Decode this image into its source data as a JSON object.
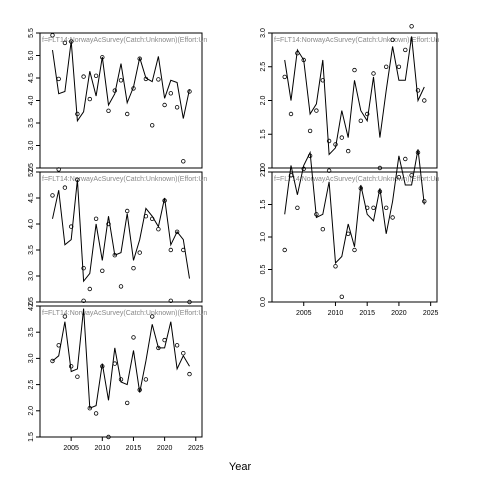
{
  "figure": {
    "xlabel": "Year",
    "x_ticks": [
      "2005",
      "2010",
      "2015",
      "2020",
      "2025"
    ]
  },
  "chart_data": [
    {
      "type": "line",
      "panel_label": "f=FLT14:NorwayAcSurvey(Catch:Unknown)(Effort:Un",
      "xlim": [
        2000,
        2026
      ],
      "ylim": [
        2.5,
        5.5
      ],
      "y_ticks": [
        "2.5",
        "3.0",
        "3.5",
        "4.0",
        "4.5",
        "5.0",
        "5.5"
      ],
      "x": [
        2002,
        2003,
        2004,
        2005,
        2006,
        2007,
        2008,
        2009,
        2010,
        2011,
        2012,
        2013,
        2014,
        2015,
        2016,
        2017,
        2018,
        2019,
        2020,
        2021,
        2022,
        2023,
        2024
      ],
      "series": [
        {
          "values": [
            5.12,
            4.15,
            4.2,
            5.32,
            3.55,
            3.75,
            4.65,
            4.1,
            4.97,
            3.9,
            4.15,
            4.82,
            3.95,
            4.3,
            4.95,
            4.5,
            4.42,
            4.98,
            4.05,
            4.45,
            4.4,
            3.6,
            4.25
          ]
        },
        {
          "values": [
            5.45,
            4.48,
            5.28,
            5.31,
            3.7,
            4.53,
            4.03,
            4.55,
            4.96,
            3.77,
            4.22,
            4.45,
            3.7,
            4.27,
            4.93,
            4.48,
            3.45,
            4.47,
            3.9,
            4.16,
            3.85,
            2.65,
            4.2
          ]
        }
      ]
    },
    {
      "type": "line",
      "panel_label": "f=FLT14:NorwayAcSurvey(Catch:Unknown)(Effort:Un",
      "xlim": [
        2000,
        2026
      ],
      "ylim": [
        1.0,
        3.0
      ],
      "y_ticks": [
        "1.0",
        "1.5",
        "2.0",
        "2.5",
        "3.0"
      ],
      "x": [
        2002,
        2003,
        2004,
        2005,
        2006,
        2007,
        2008,
        2009,
        2010,
        2011,
        2012,
        2013,
        2014,
        2015,
        2016,
        2017,
        2018,
        2019,
        2020,
        2021,
        2022,
        2023,
        2024
      ],
      "series": [
        {
          "values": [
            2.6,
            2.0,
            2.75,
            2.6,
            1.8,
            1.95,
            2.6,
            1.2,
            1.3,
            1.85,
            1.45,
            2.3,
            1.85,
            1.7,
            2.35,
            1.45,
            2.15,
            2.8,
            2.3,
            2.3,
            2.95,
            2.0,
            2.2
          ]
        },
        {
          "values": [
            2.35,
            1.8,
            2.7,
            2.6,
            1.55,
            1.85,
            2.3,
            1.4,
            1.35,
            1.45,
            1.25,
            2.45,
            1.7,
            1.8,
            2.4,
            1.0,
            2.5,
            2.9,
            2.5,
            2.75,
            3.1,
            2.15,
            2.0
          ]
        }
      ]
    },
    {
      "type": "line",
      "panel_label": "f=FLT14:NorwayAcSurvey(Catch:Unknown)(Effort:Un",
      "xlim": [
        2000,
        2026
      ],
      "ylim": [
        2.5,
        5.0
      ],
      "y_ticks": [
        "2.5",
        "3.0",
        "3.5",
        "4.0",
        "4.5",
        "5.0"
      ],
      "x": [
        2002,
        2003,
        2004,
        2005,
        2006,
        2007,
        2008,
        2009,
        2010,
        2011,
        2012,
        2013,
        2014,
        2015,
        2016,
        2017,
        2018,
        2019,
        2020,
        2021,
        2022,
        2023,
        2024
      ],
      "series": [
        {
          "values": [
            4.1,
            4.65,
            3.6,
            3.7,
            4.85,
            2.9,
            3.05,
            4.0,
            3.3,
            4.15,
            3.4,
            3.45,
            4.2,
            3.3,
            3.7,
            4.3,
            4.15,
            3.95,
            4.5,
            3.6,
            3.85,
            3.7,
            2.95
          ]
        },
        {
          "values": [
            4.55,
            5.05,
            4.7,
            3.95,
            4.85,
            3.15,
            2.75,
            4.1,
            3.1,
            4.0,
            3.4,
            2.8,
            4.25,
            3.15,
            3.45,
            4.15,
            4.1,
            3.9,
            4.45,
            3.5,
            3.85,
            3.5,
            2.5
          ]
        }
      ]
    },
    {
      "type": "line",
      "panel_label": "f=FLT14:NorwayAcSurvey(Catch:Unknown)(Effort:Un",
      "xlim": [
        2000,
        2026
      ],
      "ylim": [
        0.0,
        2.0
      ],
      "y_ticks": [
        "0.0",
        "0.5",
        "1.0",
        "1.5",
        "2.0"
      ],
      "x": [
        2002,
        2003,
        2004,
        2005,
        2006,
        2007,
        2008,
        2009,
        2010,
        2011,
        2012,
        2013,
        2014,
        2015,
        2016,
        2017,
        2018,
        2019,
        2020,
        2021,
        2022,
        2023,
        2024
      ],
      "series": [
        {
          "values": [
            1.35,
            2.1,
            1.65,
            2.1,
            2.3,
            1.3,
            1.35,
            1.85,
            0.6,
            0.7,
            1.2,
            0.85,
            1.8,
            1.35,
            1.25,
            1.75,
            1.05,
            1.55,
            2.25,
            1.8,
            1.8,
            2.35,
            1.5
          ]
        },
        {
          "values": [
            0.8,
            1.95,
            1.45,
            2.05,
            2.25,
            1.35,
            1.12,
            2.02,
            0.55,
            0.08,
            1.05,
            0.8,
            1.75,
            1.45,
            1.45,
            1.7,
            1.45,
            1.3,
            1.92,
            2.2,
            1.95,
            2.3,
            1.55
          ]
        }
      ]
    },
    {
      "type": "line",
      "panel_label": "f=FLT14:NorwayAcSurvey(Catch:Unknown)(Effort:Un",
      "xlim": [
        2000,
        2026
      ],
      "ylim": [
        1.5,
        4.0
      ],
      "y_ticks": [
        "1.5",
        "2.0",
        "2.5",
        "3.0",
        "3.5",
        "4.0"
      ],
      "x": [
        2002,
        2003,
        2004,
        2005,
        2006,
        2007,
        2008,
        2009,
        2010,
        2011,
        2012,
        2013,
        2014,
        2015,
        2016,
        2017,
        2018,
        2019,
        2020,
        2021,
        2022,
        2023,
        2024
      ],
      "series": [
        {
          "values": [
            2.95,
            3.05,
            3.7,
            2.75,
            2.8,
            3.95,
            2.05,
            2.1,
            2.9,
            2.2,
            3.2,
            2.55,
            2.5,
            3.15,
            2.35,
            2.95,
            3.65,
            3.2,
            3.2,
            3.7,
            2.8,
            3.05,
            2.85
          ]
        },
        {
          "values": [
            2.95,
            3.25,
            3.8,
            2.85,
            2.65,
            4.1,
            2.05,
            1.95,
            2.85,
            1.5,
            2.9,
            2.6,
            2.15,
            3.4,
            2.4,
            2.6,
            3.8,
            3.2,
            3.35,
            4.1,
            3.25,
            3.1,
            2.7
          ]
        }
      ]
    }
  ]
}
